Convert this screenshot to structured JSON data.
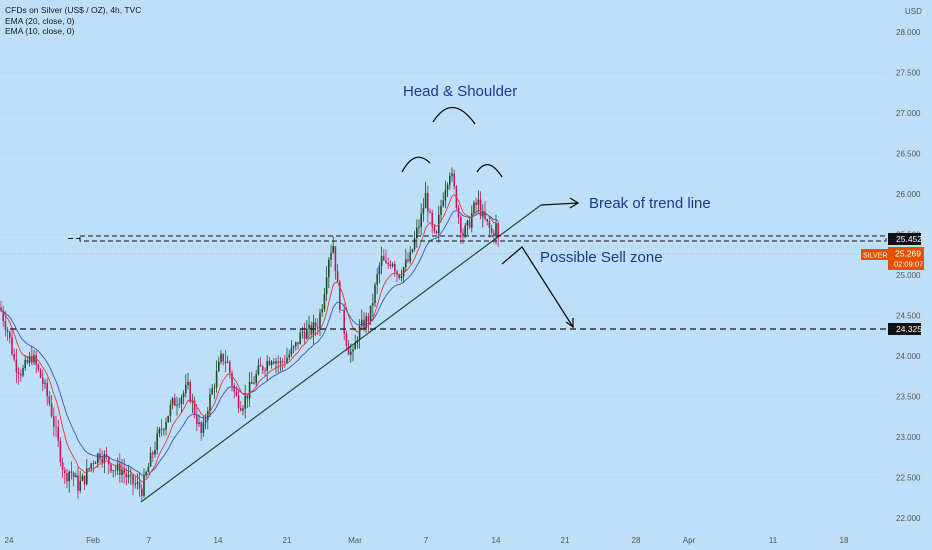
{
  "legend": {
    "line1": "CFDs on Silver (US$ / OZ), 4h, TVC",
    "line2": "EMA (20, close, 0)",
    "line3": "EMA (10, close, 0)"
  },
  "currency": "USD",
  "colors": {
    "background": "#bde0f8",
    "up_candle": "#1e4d24",
    "down_candle": "#c2185b",
    "ema20": "#3f51b5",
    "ema10": "#e53935",
    "annotation": "#1a3a8a",
    "price_tag": "#e65100"
  },
  "annotations": {
    "head_shoulder": "Head & Shoulder",
    "break": "Break of trend line",
    "sell_zone": "Possible Sell zone"
  },
  "price_labels": {
    "neckline": "25.452",
    "support": "24.325",
    "symbol": "SILVER",
    "current": "25.269",
    "countdown": "02:09:07"
  },
  "chart_data": {
    "type": "candlestick",
    "title": "CFDs on Silver (US$ / OZ), 4h, TVC",
    "y_unit": "USD",
    "ylim": [
      21.9,
      28.3
    ],
    "y_ticks": [
      "28.000",
      "27.500",
      "27.000",
      "26.500",
      "26.000",
      "25.500",
      "25.000",
      "24.500",
      "24.000",
      "23.500",
      "23.000",
      "22.500",
      "22.000"
    ],
    "x_ticks": [
      "24",
      "Feb",
      "7",
      "14",
      "21",
      "Mar",
      "7",
      "14",
      "21",
      "28",
      "Apr",
      "11",
      "18"
    ],
    "series": [
      {
        "name": "EMA (20, close, 0)",
        "color": "#3f51b5"
      },
      {
        "name": "EMA (10, close, 0)",
        "color": "#e53935"
      }
    ],
    "key_levels": [
      25.452,
      24.325
    ],
    "last_price": 25.269,
    "price_path": [
      [
        0,
        24.6
      ],
      [
        8,
        24.3
      ],
      [
        15,
        23.9
      ],
      [
        22,
        23.8
      ],
      [
        32,
        24.0
      ],
      [
        42,
        23.7
      ],
      [
        50,
        23.4
      ],
      [
        55,
        23.1
      ],
      [
        60,
        22.8
      ],
      [
        65,
        22.5
      ],
      [
        70,
        22.6
      ],
      [
        78,
        22.4
      ],
      [
        85,
        22.5
      ],
      [
        92,
        22.7
      ],
      [
        100,
        22.8
      ],
      [
        108,
        22.7
      ],
      [
        115,
        22.6
      ],
      [
        122,
        22.6
      ],
      [
        130,
        22.45
      ],
      [
        137,
        22.4
      ],
      [
        142,
        22.35
      ],
      [
        150,
        22.7
      ],
      [
        158,
        23.0
      ],
      [
        165,
        23.2
      ],
      [
        172,
        23.4
      ],
      [
        180,
        23.5
      ],
      [
        188,
        23.6
      ],
      [
        195,
        23.3
      ],
      [
        202,
        23.0
      ],
      [
        208,
        23.4
      ],
      [
        215,
        23.7
      ],
      [
        222,
        24.0
      ],
      [
        228,
        23.9
      ],
      [
        235,
        23.5
      ],
      [
        242,
        23.4
      ],
      [
        250,
        23.6
      ],
      [
        258,
        23.8
      ],
      [
        265,
        23.9
      ],
      [
        272,
        24.0
      ],
      [
        280,
        23.9
      ],
      [
        288,
        24.0
      ],
      [
        295,
        24.1
      ],
      [
        302,
        24.3
      ],
      [
        310,
        24.3
      ],
      [
        318,
        24.4
      ],
      [
        323,
        24.7
      ],
      [
        328,
        25.2
      ],
      [
        333,
        25.4
      ],
      [
        338,
        24.8
      ],
      [
        343,
        24.4
      ],
      [
        348,
        24.1
      ],
      [
        353,
        24.0
      ],
      [
        358,
        24.3
      ],
      [
        364,
        24.4
      ],
      [
        370,
        24.5
      ],
      [
        376,
        24.9
      ],
      [
        381,
        25.2
      ],
      [
        386,
        25.1
      ],
      [
        392,
        25.2
      ],
      [
        398,
        25.0
      ],
      [
        404,
        25.1
      ],
      [
        410,
        25.2
      ],
      [
        416,
        25.5
      ],
      [
        421,
        25.7
      ],
      [
        426,
        26.0
      ],
      [
        431,
        25.6
      ],
      [
        436,
        25.4
      ],
      [
        440,
        25.8
      ],
      [
        445,
        26.1
      ],
      [
        450,
        26.3
      ],
      [
        455,
        26.0
      ],
      [
        459,
        25.7
      ],
      [
        463,
        25.5
      ],
      [
        468,
        25.6
      ],
      [
        473,
        25.8
      ],
      [
        478,
        25.9
      ],
      [
        483,
        25.7
      ],
      [
        488,
        25.6
      ],
      [
        492,
        25.5
      ],
      [
        496,
        25.6
      ],
      [
        500,
        25.3
      ]
    ]
  }
}
